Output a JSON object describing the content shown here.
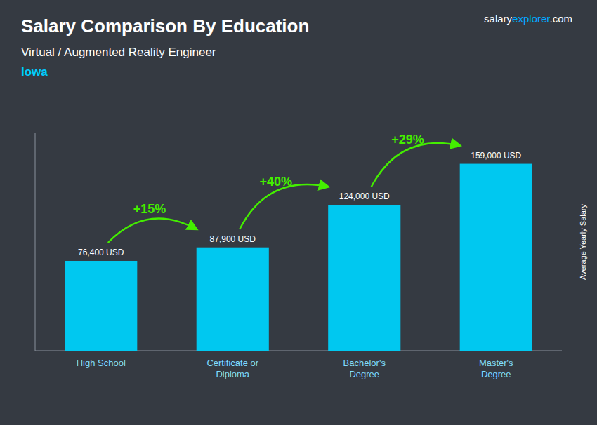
{
  "chart_data": {
    "type": "bar",
    "title": "Salary Comparison By Education",
    "subtitle": "Virtual / Augmented Reality Engineer",
    "y_label": "Average Yearly Salary",
    "categories": [
      "High School",
      "Certificate or\nDiploma",
      "Bachelor's\nDegree",
      "Master's\nDegree"
    ],
    "values": [
      76400,
      87900,
      124000,
      159000
    ],
    "value_labels": [
      "76,400 USD",
      "87,900 USD",
      "124,000 USD",
      "159,000 USD"
    ],
    "data_labels": true,
    "color": "#00c8f0",
    "ylim": [
      0,
      185000
    ],
    "tick_labels": false,
    "grid": false,
    "annotations": [
      {
        "text": "Iowa",
        "color": "#00ccff"
      },
      {
        "text": "salary"
      },
      {
        "text": "explorer",
        "color": "#00aaff"
      },
      {
        "text": ".com"
      },
      {
        "text": "+15%",
        "from": 0,
        "to": 1,
        "color": "#44ee00"
      },
      {
        "text": "+40%",
        "from": 1,
        "to": 2,
        "color": "#44ee00"
      },
      {
        "text": "+29%",
        "from": 2,
        "to": 3,
        "color": "#44ee00"
      }
    ]
  }
}
